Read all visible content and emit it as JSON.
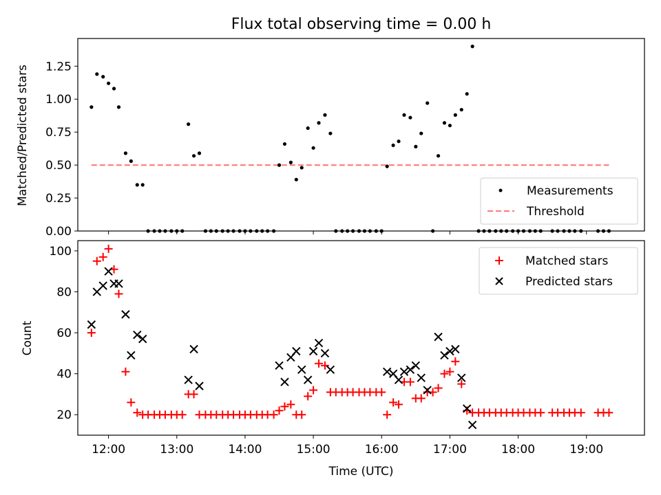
{
  "title": "Flux total observing time = 0.00 h",
  "colors": {
    "measurements": "#000000",
    "threshold": "#ff8080",
    "matched": "#ff0000",
    "predicted": "#000000"
  },
  "chart_data": [
    {
      "type": "scatter",
      "ylabel": "Matched/Predicted stars",
      "xlim": [
        11.55,
        19.85
      ],
      "ylim": [
        0,
        1.46
      ],
      "yticks": [
        "0.00",
        "0.25",
        "0.50",
        "0.75",
        "1.00",
        "1.25"
      ],
      "grid": false,
      "legend": {
        "placement": "lower-right",
        "entries": [
          "Measurements",
          "Threshold"
        ]
      },
      "threshold": {
        "name": "Threshold",
        "value": 0.5,
        "x_range": [
          11.75,
          19.33
        ]
      },
      "series": [
        {
          "name": "Measurements",
          "x": [
            11.75,
            11.83,
            11.92,
            12.0,
            12.08,
            12.15,
            12.25,
            12.33,
            12.42,
            12.5,
            12.58,
            12.67,
            12.75,
            12.83,
            12.92,
            13.0,
            13.08,
            13.17,
            13.25,
            13.33,
            13.42,
            13.5,
            13.58,
            13.67,
            13.75,
            13.83,
            13.92,
            14.0,
            14.08,
            14.17,
            14.25,
            14.33,
            14.42,
            14.5,
            14.58,
            14.67,
            14.75,
            14.83,
            14.92,
            15.0,
            15.08,
            15.17,
            15.25,
            15.33,
            15.42,
            15.5,
            15.58,
            15.67,
            15.75,
            15.83,
            15.92,
            16.0,
            16.08,
            16.17,
            16.25,
            16.33,
            16.42,
            16.5,
            16.58,
            16.67,
            16.75,
            16.83,
            16.92,
            17.0,
            17.08,
            17.17,
            17.25,
            17.33,
            17.42,
            17.5,
            17.58,
            17.67,
            17.75,
            17.83,
            17.92,
            18.0,
            18.08,
            18.17,
            18.25,
            18.33,
            18.5,
            18.58,
            18.67,
            18.75,
            18.83,
            18.92,
            19.17,
            19.25,
            19.33
          ],
          "y": [
            0.94,
            1.19,
            1.17,
            1.12,
            1.08,
            0.94,
            0.59,
            0.53,
            0.35,
            0.35,
            0,
            0,
            0,
            0,
            0,
            0,
            0,
            0.81,
            0.57,
            0.59,
            0,
            0,
            0,
            0,
            0,
            0,
            0,
            0,
            0,
            0,
            0,
            0,
            0,
            0.5,
            0.66,
            0.52,
            0.39,
            0.48,
            0.78,
            0.63,
            0.82,
            0.88,
            0.74,
            0,
            0,
            0,
            0,
            0,
            0,
            0,
            0,
            0,
            0.49,
            0.65,
            0.68,
            0.88,
            0.86,
            0.64,
            0.74,
            0.97,
            0,
            0.57,
            0.82,
            0.8,
            0.88,
            0.92,
            1.04,
            1.4,
            0,
            0,
            0,
            0,
            0,
            0,
            0,
            0,
            0,
            0,
            0,
            0,
            0,
            0,
            0,
            0,
            0,
            0,
            0,
            0,
            0
          ]
        }
      ]
    },
    {
      "type": "scatter",
      "xlabel": "Time (UTC)",
      "ylabel": "Count",
      "xlim": [
        11.55,
        19.85
      ],
      "ylim": [
        10,
        105
      ],
      "xticks": [
        {
          "value": 12,
          "label": "12:00"
        },
        {
          "value": 13,
          "label": "13:00"
        },
        {
          "value": 14,
          "label": "14:00"
        },
        {
          "value": 15,
          "label": "15:00"
        },
        {
          "value": 16,
          "label": "16:00"
        },
        {
          "value": 17,
          "label": "17:00"
        },
        {
          "value": 18,
          "label": "18:00"
        },
        {
          "value": 19,
          "label": "19:00"
        }
      ],
      "yticks": [
        "20",
        "40",
        "60",
        "80",
        "100"
      ],
      "grid": false,
      "legend": {
        "placement": "top-right",
        "entries": [
          "Matched stars",
          "Predicted stars"
        ]
      },
      "series": [
        {
          "name": "Matched stars",
          "x": [
            11.75,
            11.83,
            11.92,
            12.0,
            12.08,
            12.15,
            12.25,
            12.33,
            12.42,
            12.5,
            12.58,
            12.67,
            12.75,
            12.83,
            12.92,
            13.0,
            13.08,
            13.17,
            13.25,
            13.33,
            13.42,
            13.5,
            13.58,
            13.67,
            13.75,
            13.83,
            13.92,
            14.0,
            14.08,
            14.17,
            14.25,
            14.33,
            14.42,
            14.5,
            14.58,
            14.67,
            14.75,
            14.83,
            14.92,
            15.0,
            15.08,
            15.17,
            15.25,
            15.33,
            15.42,
            15.5,
            15.58,
            15.67,
            15.75,
            15.83,
            15.92,
            16.0,
            16.08,
            16.17,
            16.25,
            16.33,
            16.42,
            16.5,
            16.58,
            16.67,
            16.75,
            16.83,
            16.92,
            17.0,
            17.08,
            17.17,
            17.25,
            17.33,
            17.42,
            17.5,
            17.58,
            17.67,
            17.75,
            17.83,
            17.92,
            18.0,
            18.08,
            18.17,
            18.25,
            18.33,
            18.5,
            18.58,
            18.67,
            18.75,
            18.83,
            18.92,
            19.17,
            19.25,
            19.33
          ],
          "y": [
            60,
            95,
            97,
            101,
            91,
            79,
            41,
            26,
            21,
            20,
            20,
            20,
            20,
            20,
            20,
            20,
            20,
            30,
            30,
            20,
            20,
            20,
            20,
            20,
            20,
            20,
            20,
            20,
            20,
            20,
            20,
            20,
            20,
            22,
            24,
            25,
            20,
            20,
            29,
            32,
            45,
            44,
            31,
            31,
            31,
            31,
            31,
            31,
            31,
            31,
            31,
            31,
            20,
            26,
            25,
            36,
            36,
            28,
            28,
            31,
            31,
            33,
            40,
            41,
            46,
            35,
            22,
            21,
            21,
            21,
            21,
            21,
            21,
            21,
            21,
            21,
            21,
            21,
            21,
            21,
            21,
            21,
            21,
            21,
            21,
            21,
            21,
            21,
            21
          ]
        },
        {
          "name": "Predicted stars",
          "x": [
            11.75,
            11.83,
            11.92,
            12.0,
            12.08,
            12.15,
            12.25,
            12.33,
            12.42,
            12.5,
            13.17,
            13.25,
            13.33,
            14.5,
            14.58,
            14.67,
            14.75,
            14.83,
            14.92,
            15.0,
            15.08,
            15.17,
            15.25,
            16.08,
            16.17,
            16.25,
            16.33,
            16.42,
            16.5,
            16.58,
            16.67,
            16.83,
            16.92,
            17.0,
            17.08,
            17.17,
            17.25,
            17.33
          ],
          "y": [
            64,
            80,
            83,
            90,
            84,
            84,
            69,
            49,
            59,
            57,
            37,
            52,
            34,
            44,
            36,
            48,
            51,
            42,
            37,
            51,
            55,
            50,
            42,
            41,
            40,
            37,
            41,
            42,
            44,
            38,
            32,
            58,
            49,
            51,
            52,
            38,
            23,
            15
          ]
        }
      ]
    }
  ]
}
